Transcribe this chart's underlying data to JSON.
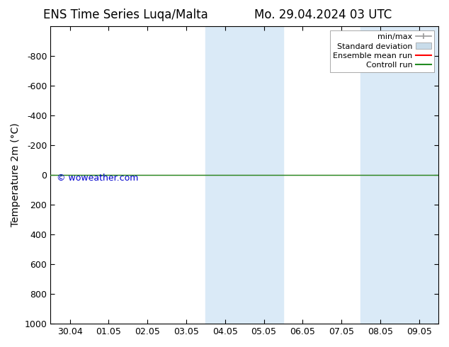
{
  "title_left": "ENS Time Series Luqa/Malta",
  "title_right": "Mo. 29.04.2024 03 UTC",
  "ylabel": "Temperature 2m (°C)",
  "watermark": "© woweather.com",
  "watermark_color": "#0000cc",
  "ylim_top": -1000,
  "ylim_bottom": 1000,
  "yticks": [
    -800,
    -600,
    -400,
    -200,
    0,
    200,
    400,
    600,
    800,
    1000
  ],
  "xtick_labels": [
    "30.04",
    "01.05",
    "02.05",
    "03.05",
    "04.05",
    "05.05",
    "06.05",
    "07.05",
    "08.05",
    "09.05"
  ],
  "xtick_positions": [
    0,
    1,
    2,
    3,
    4,
    5,
    6,
    7,
    8,
    9
  ],
  "shaded_bands": [
    {
      "xmin": 3.5,
      "xmax": 5.5
    },
    {
      "xmin": 7.5,
      "xmax": 9.5
    }
  ],
  "shaded_color": "#daeaf7",
  "control_run_y": 0,
  "control_run_color": "#228B22",
  "ensemble_mean_color": "#ff0000",
  "minmax_color": "#999999",
  "stddev_color": "#c8dcea",
  "background_color": "#ffffff",
  "legend_items": [
    "min/max",
    "Standard deviation",
    "Ensemble mean run",
    "Controll run"
  ],
  "legend_colors": [
    "#999999",
    "#c8dcea",
    "#ff0000",
    "#228B22"
  ],
  "title_fontsize": 12,
  "axis_fontsize": 10,
  "tick_fontsize": 9
}
